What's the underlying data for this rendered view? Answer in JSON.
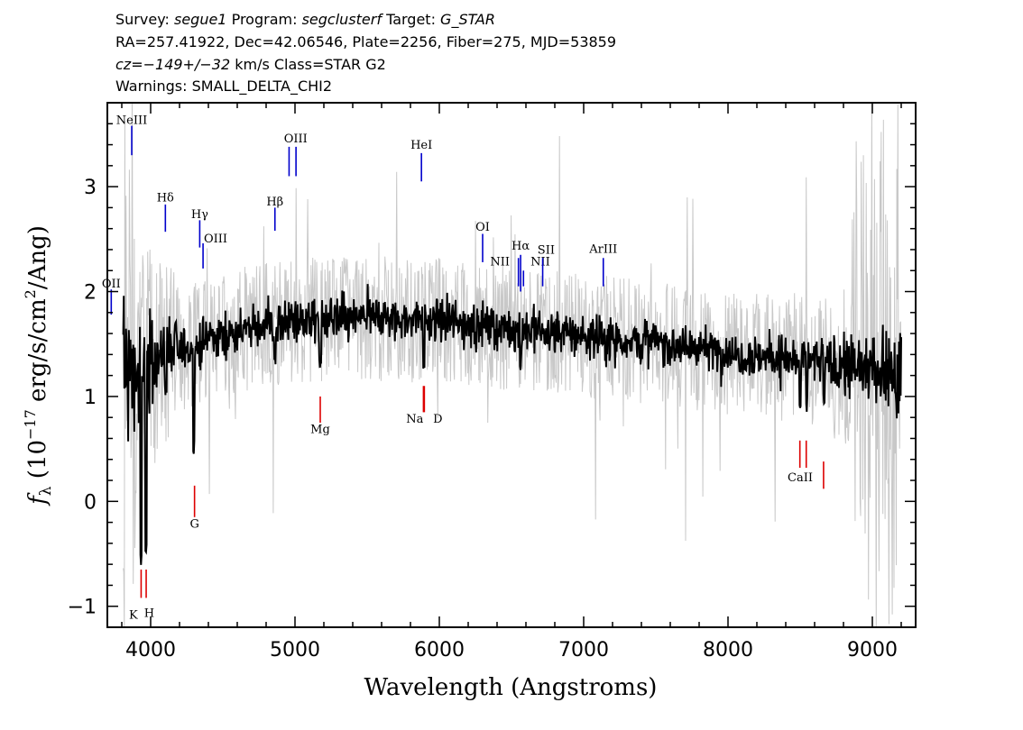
{
  "header": {
    "survey_label": "Survey:",
    "survey": "segue1",
    "program_label": "Program:",
    "program": "segclusterf",
    "target_label": "Target:",
    "target": "G_STAR",
    "line2": "RA=257.41922, Dec=42.06546, Plate=2256, Fiber=275, MJD=53859",
    "cz_prefix": "cz=",
    "cz_value": "−149+/−32",
    "cz_suffix": " km/s Class=STAR G2",
    "warnings": "Warnings: SMALL_DELTA_CHI2"
  },
  "chart_data": {
    "type": "line",
    "xlabel": "Wavelength (Angstroms)",
    "ylabel_prefix": "f",
    "ylabel_sub": "λ",
    "ylabel_rest": " (10",
    "ylabel_exp": "−17",
    "ylabel_unit": " erg/s/cm",
    "ylabel_sq": "2",
    "ylabel_end": "/Ang)",
    "xlim": [
      3700,
      9300
    ],
    "ylim": [
      -1.2,
      3.8
    ],
    "xticks": [
      4000,
      5000,
      6000,
      7000,
      8000,
      9000
    ],
    "yticks": [
      -1,
      0,
      1,
      2,
      3
    ],
    "ytick_labels": [
      "−1",
      "0",
      "1",
      "2",
      "3"
    ],
    "series": [
      {
        "role": "flux",
        "color": "#000000",
        "x_range": [
          3810,
          9200
        ],
        "profile": [
          [
            3810,
            1.2
          ],
          [
            3900,
            1.2
          ],
          [
            4000,
            1.35
          ],
          [
            4200,
            1.45
          ],
          [
            4400,
            1.55
          ],
          [
            4700,
            1.65
          ],
          [
            5000,
            1.72
          ],
          [
            5500,
            1.75
          ],
          [
            6000,
            1.72
          ],
          [
            6500,
            1.65
          ],
          [
            7000,
            1.58
          ],
          [
            7500,
            1.52
          ],
          [
            8000,
            1.42
          ],
          [
            8500,
            1.35
          ],
          [
            9000,
            1.25
          ],
          [
            9200,
            1.2
          ]
        ],
        "features": [
          [
            3934,
            -0.65
          ],
          [
            3969,
            -0.5
          ],
          [
            4102,
            1.1
          ],
          [
            4300,
            0.45
          ],
          [
            4861,
            1.25
          ],
          [
            5175,
            1.2
          ],
          [
            5893,
            1.15
          ],
          [
            6563,
            1.25
          ],
          [
            8500,
            0.8
          ],
          [
            8544,
            0.85
          ],
          [
            8665,
            0.9
          ]
        ]
      },
      {
        "role": "error",
        "color": "#c8c8c8",
        "x_range": [
          3810,
          9200
        ]
      }
    ],
    "emission_lines": [
      {
        "label": "NeIII",
        "x": 3869,
        "y0": 3.3,
        "y1": 3.58,
        "lx": 3869,
        "ly": 3.6
      },
      {
        "label": "OII",
        "x": 3727,
        "y0": 1.78,
        "y1": 2.02,
        "lx": 3727,
        "ly": 2.04
      },
      {
        "label": "Hδ",
        "x": 4102,
        "y0": 2.57,
        "y1": 2.83,
        "lx": 4102,
        "ly": 2.86
      },
      {
        "label": "Hγ",
        "x": 4340,
        "y0": 2.42,
        "y1": 2.68,
        "lx": 4340,
        "ly": 2.7
      },
      {
        "label": "OIII",
        "x": 4363,
        "y0": 2.22,
        "y1": 2.46,
        "lx": 4450,
        "ly": 2.47
      },
      {
        "label": "Hβ",
        "x": 4861,
        "y0": 2.58,
        "y1": 2.8,
        "lx": 4861,
        "ly": 2.82
      },
      {
        "label": "OIII",
        "x": 4959,
        "y0": 3.1,
        "y1": 3.38,
        "lx": 5005,
        "ly": 3.42
      },
      {
        "label": "OIII",
        "x": 5007,
        "y0": 3.1,
        "y1": 3.38,
        "lx": null,
        "ly": null
      },
      {
        "label": "HeI",
        "x": 5876,
        "y0": 3.05,
        "y1": 3.32,
        "lx": 5876,
        "ly": 3.36
      },
      {
        "label": "OI",
        "x": 6300,
        "y0": 2.28,
        "y1": 2.55,
        "lx": 6300,
        "ly": 2.58
      },
      {
        "label": "NII",
        "x": 6548,
        "y0": 2.05,
        "y1": 2.32,
        "lx": 6420,
        "ly": 2.25
      },
      {
        "label": "Hα",
        "x": 6563,
        "y0": 2.0,
        "y1": 2.35,
        "lx": 6563,
        "ly": 2.4
      },
      {
        "label": "NII",
        "x": 6583,
        "y0": 2.05,
        "y1": 2.2,
        "lx": 6700,
        "ly": 2.25
      },
      {
        "label": "SII",
        "x": 6716,
        "y0": 2.05,
        "y1": 2.32,
        "lx": 6740,
        "ly": 2.36
      },
      {
        "label": "ArIII",
        "x": 7136,
        "y0": 2.05,
        "y1": 2.32,
        "lx": 7136,
        "ly": 2.37
      }
    ],
    "absorption_lines": [
      {
        "label": "K",
        "x": 3934,
        "y0": -0.92,
        "y1": -0.65,
        "lx": 3880,
        "ly": -1.12
      },
      {
        "label": "H",
        "x": 3969,
        "y0": -0.92,
        "y1": -0.65,
        "lx": 3990,
        "ly": -1.1
      },
      {
        "label": "G",
        "x": 4304,
        "y0": -0.15,
        "y1": 0.15,
        "lx": 4304,
        "ly": -0.25
      },
      {
        "label": "Mg",
        "x": 5175,
        "y0": 0.75,
        "y1": 1.0,
        "lx": 5175,
        "ly": 0.65
      },
      {
        "label": "Na",
        "x": 5890,
        "y0": 0.85,
        "y1": 1.1,
        "lx": 5830,
        "ly": 0.75
      },
      {
        "label": "D",
        "x": 5896,
        "y0": 0.85,
        "y1": 1.1,
        "lx": 5990,
        "ly": 0.75
      },
      {
        "label": "CaII",
        "x": 8498,
        "y0": 0.32,
        "y1": 0.58,
        "lx": 8500,
        "ly": 0.19
      },
      {
        "label": "",
        "x": 8542,
        "y0": 0.32,
        "y1": 0.58,
        "lx": null,
        "ly": null
      },
      {
        "label": "",
        "x": 8662,
        "y0": 0.12,
        "y1": 0.38,
        "lx": null,
        "ly": null
      }
    ]
  }
}
